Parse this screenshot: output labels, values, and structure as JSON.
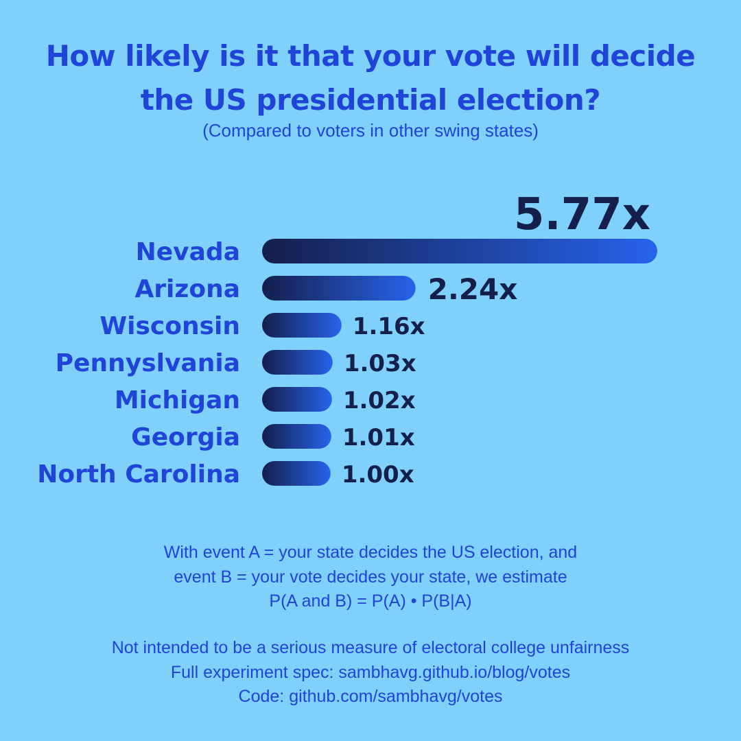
{
  "title_lines": [
    "How likely is it that your vote will decide",
    "the US presidential election?"
  ],
  "subtitle": "(Compared to voters in other swing states)",
  "colors": {
    "background": "#7fd0fa",
    "accent_text": "#2043d8",
    "value_text": "#141f4c",
    "bar_gradient_start": "#141f4c",
    "bar_gradient_end": "#2763ec"
  },
  "chart_data": {
    "type": "bar",
    "orientation": "horizontal",
    "categories": [
      "Nevada",
      "Arizona",
      "Wisconsin",
      "Pennyslvania",
      "Michigan",
      "Georgia",
      "North Carolina"
    ],
    "values": [
      5.77,
      2.24,
      1.16,
      1.03,
      1.02,
      1.01,
      1.0
    ],
    "value_labels": [
      "5.77x",
      "2.24x",
      "1.16x",
      "1.03x",
      "1.02x",
      "1.01x",
      "1.00x"
    ],
    "grid": false,
    "legend": "none"
  },
  "notes_block_1": [
    "With event A = your state decides the US election, and",
    "event B = your vote decides your state, we estimate",
    "P(A and B) = P(A) • P(B|A)"
  ],
  "notes_block_2": [
    "Not intended to be a serious measure of electoral college unfairness",
    "Full experiment spec: sambhavg.github.io/blog/votes",
    "Code: github.com/sambhavg/votes"
  ]
}
